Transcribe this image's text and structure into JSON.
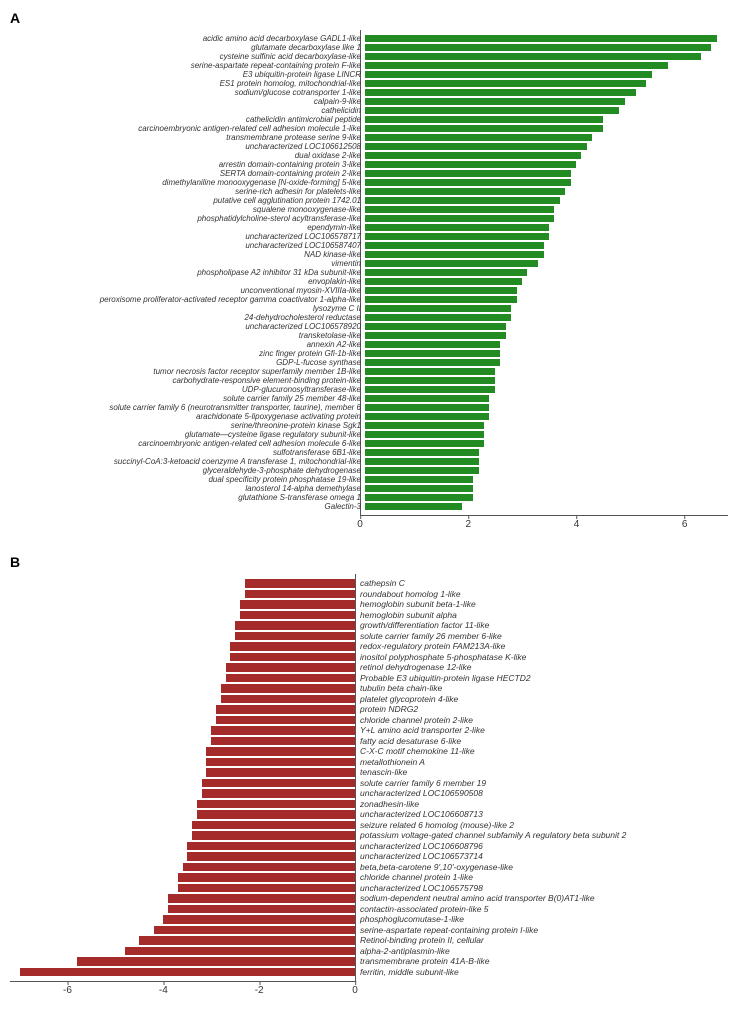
{
  "panelA": {
    "label": "A",
    "bar_color": "#228b22",
    "xmin": 0,
    "xmax": 6.8,
    "xticks": [
      0,
      2,
      4,
      6
    ],
    "items": [
      {
        "label": "acidic amino acid decarboxylase GADL1-like",
        "value": 6.5
      },
      {
        "label": "glutamate decarboxylase like 1",
        "value": 6.4
      },
      {
        "label": "cysteine sulfinic acid decarboxylase-like",
        "value": 6.2
      },
      {
        "label": "serine-aspartate repeat-containing protein F-like",
        "value": 5.6
      },
      {
        "label": "E3 ubiquitin-protein ligase LINCR",
        "value": 5.3
      },
      {
        "label": "ES1 protein homolog, mitochondrial-like",
        "value": 5.2
      },
      {
        "label": "sodium/glucose cotransporter 1-like",
        "value": 5.0
      },
      {
        "label": "calpain-9-like",
        "value": 4.8
      },
      {
        "label": "cathelicidin",
        "value": 4.7
      },
      {
        "label": "cathelicidin antimicrobial peptide",
        "value": 4.4
      },
      {
        "label": "carcinoembryonic antigen-related cell adhesion molecule 1-like",
        "value": 4.4
      },
      {
        "label": "transmembrane protease serine 9-like",
        "value": 4.2
      },
      {
        "label": "uncharacterized LOC106612508",
        "value": 4.1
      },
      {
        "label": "dual oxidase 2-like",
        "value": 4.0
      },
      {
        "label": "arrestin domain-containing protein 3-like",
        "value": 3.9
      },
      {
        "label": "SERTA domain-containing protein 2-like",
        "value": 3.8
      },
      {
        "label": "dimethylaniline monooxygenase [N-oxide-forming] 5-like",
        "value": 3.8
      },
      {
        "label": "serine-rich adhesin for platelets-like",
        "value": 3.7
      },
      {
        "label": "putative cell agglutination protein 1742.01",
        "value": 3.6
      },
      {
        "label": "squalene monooxygenase-like",
        "value": 3.5
      },
      {
        "label": "phosphatidylcholine-sterol acyltransferase-like",
        "value": 3.5
      },
      {
        "label": "ependymin-like",
        "value": 3.4
      },
      {
        "label": "uncharacterized LOC106578717",
        "value": 3.4
      },
      {
        "label": "uncharacterized LOC106587407",
        "value": 3.3
      },
      {
        "label": "NAD kinase-like",
        "value": 3.3
      },
      {
        "label": "vimentin",
        "value": 3.2
      },
      {
        "label": "phospholipase A2 inhibitor 31 kDa subunit-like",
        "value": 3.0
      },
      {
        "label": "envoplakin-like",
        "value": 2.9
      },
      {
        "label": "unconventional myosin-XVIIIa-like",
        "value": 2.8
      },
      {
        "label": "peroxisome proliferator-activated receptor gamma coactivator 1-alpha-like",
        "value": 2.8
      },
      {
        "label": "lysozyme C II",
        "value": 2.7
      },
      {
        "label": "24-dehydrocholesterol reductase",
        "value": 2.7
      },
      {
        "label": "uncharacterized LOC106578920",
        "value": 2.6
      },
      {
        "label": "transketolase-like",
        "value": 2.6
      },
      {
        "label": "annexin A2-like",
        "value": 2.5
      },
      {
        "label": "zinc finger protein Gfi-1b-like",
        "value": 2.5
      },
      {
        "label": "GDP-L-fucose synthase",
        "value": 2.5
      },
      {
        "label": "tumor necrosis factor receptor superfamily member 1B-like",
        "value": 2.4
      },
      {
        "label": "carbohydrate-responsive element-binding protein-like",
        "value": 2.4
      },
      {
        "label": "UDP-glucuronosyltransferase-like",
        "value": 2.4
      },
      {
        "label": "solute carrier family 25 member 48-like",
        "value": 2.3
      },
      {
        "label": "solute carrier family 6 (neurotransmitter transporter, taurine), member 6",
        "value": 2.3
      },
      {
        "label": "arachidonate 5-lipoxygenase activating protein",
        "value": 2.3
      },
      {
        "label": "serine/threonine-protein kinase Sgk1",
        "value": 2.2
      },
      {
        "label": "glutamate—cysteine ligase regulatory subunit-like",
        "value": 2.2
      },
      {
        "label": "carcinoembryonic antigen-related cell adhesion molecule 6-like",
        "value": 2.2
      },
      {
        "label": "sulfotransferase 6B1-like",
        "value": 2.1
      },
      {
        "label": "succinyl-CoA:3-ketoacid coenzyme A transferase 1, mitochondrial-like",
        "value": 2.1
      },
      {
        "label": "glyceraldehyde-3-phosphate dehydrogenase",
        "value": 2.1
      },
      {
        "label": "dual specificity protein phosphatase 19-like",
        "value": 2.0
      },
      {
        "label": "lanosterol 14-alpha demethylase",
        "value": 2.0
      },
      {
        "label": "glutathione S-transferase omega 1",
        "value": 2.0
      },
      {
        "label": "Galectin-3",
        "value": 1.8
      }
    ]
  },
  "panelB": {
    "label": "B",
    "bar_color": "#a52a2a",
    "xmin": -7.2,
    "xmax": 0,
    "xticks": [
      -6,
      -4,
      -2,
      0
    ],
    "items": [
      {
        "label": "cathepsin C",
        "value": -2.3
      },
      {
        "label": "roundabout homolog 1-like",
        "value": -2.3
      },
      {
        "label": "hemoglobin subunit beta-1-like",
        "value": -2.4
      },
      {
        "label": "hemoglobin subunit alpha",
        "value": -2.4
      },
      {
        "label": "growth/differentiation factor 11-like",
        "value": -2.5
      },
      {
        "label": "solute carrier family 26 member 6-like",
        "value": -2.5
      },
      {
        "label": "redox-regulatory protein FAM213A-like",
        "value": -2.6
      },
      {
        "label": "inositol polyphosphate 5-phosphatase K-like",
        "value": -2.6
      },
      {
        "label": "retinol dehydrogenase 12-like",
        "value": -2.7
      },
      {
        "label": "Probable E3 ubiquitin-protein ligase HECTD2",
        "value": -2.7
      },
      {
        "label": "tubulin beta chain-like",
        "value": -2.8
      },
      {
        "label": "platelet glycoprotein 4-like",
        "value": -2.8
      },
      {
        "label": "protein NDRG2",
        "value": -2.9
      },
      {
        "label": "chloride channel protein 2-like",
        "value": -2.9
      },
      {
        "label": "Y+L amino acid transporter 2-like",
        "value": -3.0
      },
      {
        "label": "fatty acid desaturase 6-like",
        "value": -3.0
      },
      {
        "label": "C-X-C motif chemokine 11-like",
        "value": -3.1
      },
      {
        "label": "metallothionein A",
        "value": -3.1
      },
      {
        "label": "tenascin-like",
        "value": -3.1
      },
      {
        "label": "solute carrier family 6 member 19",
        "value": -3.2
      },
      {
        "label": "uncharacterized LOC106590508",
        "value": -3.2
      },
      {
        "label": "zonadhesin-like",
        "value": -3.3
      },
      {
        "label": "uncharacterized LOC106608713",
        "value": -3.3
      },
      {
        "label": "seizure related 6 homolog (mouse)-like 2",
        "value": -3.4
      },
      {
        "label": "potassium voltage-gated channel subfamily A regulatory beta subunit 2",
        "value": -3.4
      },
      {
        "label": "uncharacterized LOC106608796",
        "value": -3.5
      },
      {
        "label": "uncharacterized LOC106573714",
        "value": -3.5
      },
      {
        "label": "beta,beta-carotene 9',10'-oxygenase-like",
        "value": -3.6
      },
      {
        "label": "chloride channel protein 1-like",
        "value": -3.7
      },
      {
        "label": "uncharacterized LOC106575798",
        "value": -3.7
      },
      {
        "label": "sodium-dependent neutral amino acid transporter B(0)AT1-like",
        "value": -3.9
      },
      {
        "label": "contactin-associated protein-like 5",
        "value": -3.9
      },
      {
        "label": "phosphoglucomutase-1-like",
        "value": -4.0
      },
      {
        "label": "serine-aspartate repeat-containing protein I-like",
        "value": -4.2
      },
      {
        "label": "Retinol-binding protein II, cellular",
        "value": -4.5
      },
      {
        "label": "alpha-2-antiplasmin-like",
        "value": -4.8
      },
      {
        "label": "transmembrane protein 41A-B-like",
        "value": -5.8
      },
      {
        "label": "ferritin, middle subunit-like",
        "value": -7.0
      }
    ]
  }
}
